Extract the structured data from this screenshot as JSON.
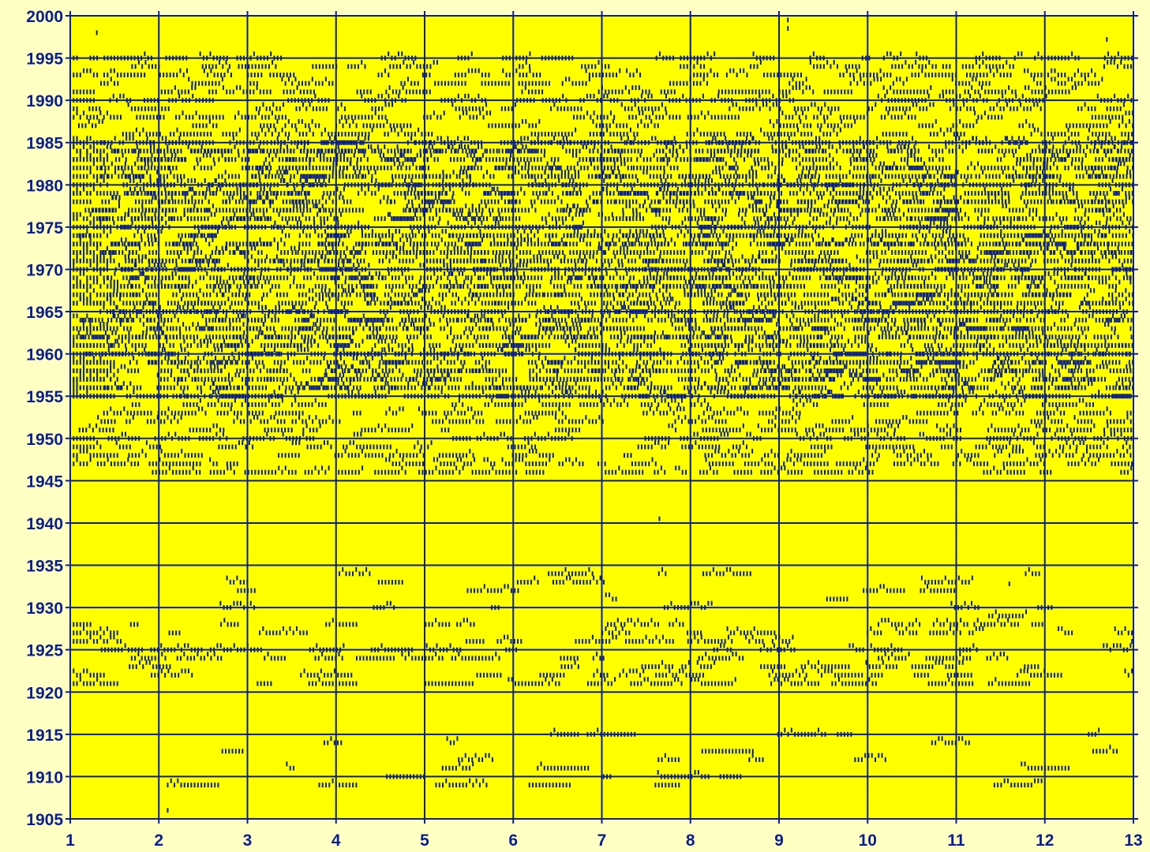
{
  "chart_data": {
    "type": "scatter",
    "title": "",
    "xlabel": "",
    "ylabel": "",
    "xlim": [
      1,
      13
    ],
    "ylim": [
      1905,
      2000
    ],
    "x_ticks": [
      "1",
      "2",
      "3",
      "4",
      "5",
      "6",
      "7",
      "8",
      "9",
      "10",
      "11",
      "12",
      "13"
    ],
    "y_ticks": [
      "1905",
      "1910",
      "1915",
      "1920",
      "1925",
      "1930",
      "1935",
      "1940",
      "1945",
      "1950",
      "1955",
      "1960",
      "1965",
      "1970",
      "1975",
      "1980",
      "1985",
      "1990",
      "1995",
      "2000"
    ],
    "grid": true,
    "marker": "short vertical dash",
    "series": [
      {
        "name": "",
        "bands": [
          {
            "y_from": 1946,
            "y_to": 1995,
            "x_from": 1,
            "x_to": 13,
            "density": 0.55
          },
          {
            "y_from": 1955,
            "y_to": 1985,
            "x_from": 1,
            "x_to": 13,
            "density": 0.85
          },
          {
            "y_from": 1929,
            "y_to": 1934,
            "x_from": 2.4,
            "x_to": 12.5,
            "density": 0.12
          },
          {
            "y_from": 1921,
            "y_to": 1928,
            "x_from": 1,
            "x_to": 13,
            "density": 0.3
          },
          {
            "y_from": 1909,
            "y_to": 1915,
            "x_from": 1.4,
            "x_to": 13,
            "density": 0.1
          }
        ],
        "points": [
          [
            7.65,
            1940.5
          ],
          [
            2.1,
            1906
          ],
          [
            9.1,
            1998.5
          ],
          [
            9.1,
            1999.5
          ],
          [
            11.6,
            1932.8
          ],
          [
            12.0,
            1929.8
          ],
          [
            12.7,
            1997.2
          ],
          [
            1.3,
            1998
          ]
        ]
      }
    ],
    "colors": {
      "background": "#ffffc4",
      "plot": "#ffff00",
      "grid": "#0a1f8c",
      "marker": "#0a1f8c"
    }
  }
}
